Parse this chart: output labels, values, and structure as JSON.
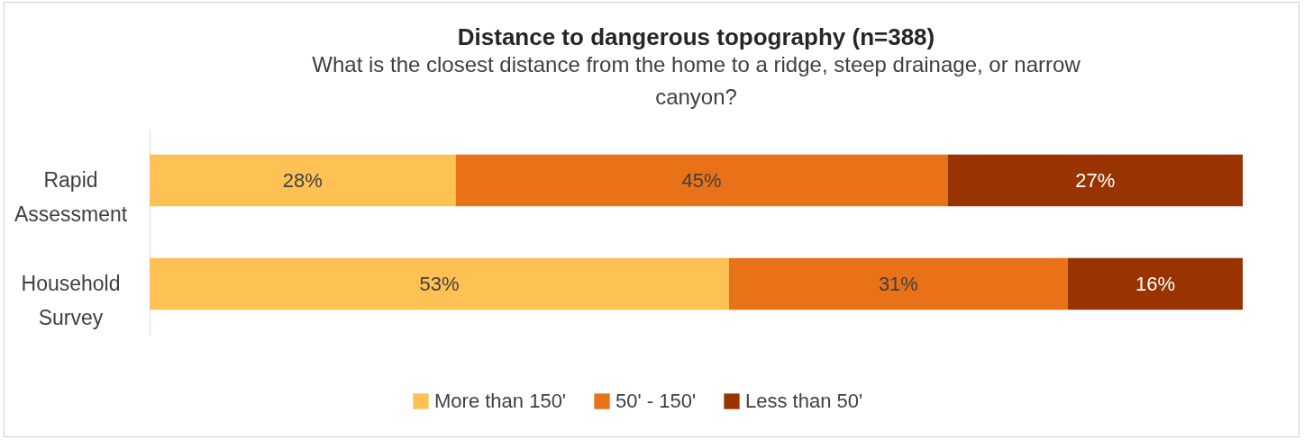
{
  "chart_data": {
    "type": "bar",
    "orientation": "horizontal",
    "stacked": true,
    "title": "Distance to dangerous topography (n=388)",
    "subtitle": "What is the closest distance from the home to a ridge, steep drainage, or narrow canyon?",
    "categories": [
      "Rapid Assessment",
      "Household Survey"
    ],
    "series": [
      {
        "name": "More than 150'",
        "color": "#fec153",
        "values": [
          28,
          53
        ],
        "value_labels": [
          "28%",
          "53%"
        ]
      },
      {
        "name": "50' - 150'",
        "color": "#e97118",
        "values": [
          45,
          31
        ],
        "value_labels": [
          "45%",
          "31%"
        ]
      },
      {
        "name": "Less than 50'",
        "color": "#993300",
        "values": [
          27,
          16
        ],
        "value_labels": [
          "27%",
          "16%"
        ]
      }
    ],
    "tick_labels": "y",
    "legend": "bottom"
  }
}
